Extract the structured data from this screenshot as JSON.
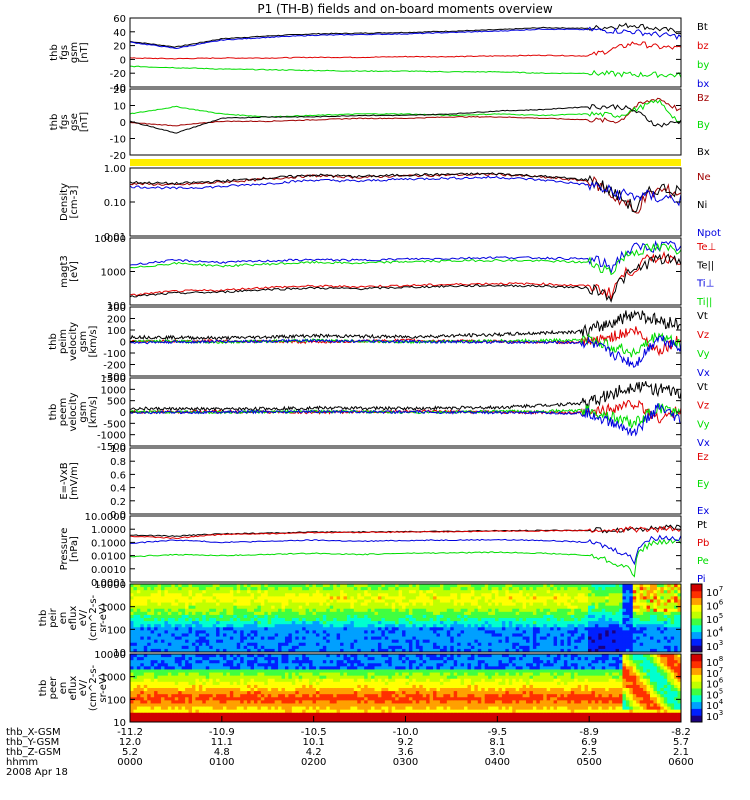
{
  "title": "P1 (TH-B) fields and on-board moments overview",
  "colors": {
    "black": "#000000",
    "red": "#e00000",
    "green": "#00dd00",
    "blue": "#0000e0",
    "yellow": "#ffee00",
    "darkred": "#a00000"
  },
  "chart_data": [
    {
      "type": "line",
      "panel": "fgs_gsm",
      "ylabel": [
        "thb",
        "fgs",
        "gsm",
        "[nT]"
      ],
      "ylim": [
        -40,
        60
      ],
      "yticks": [
        "60",
        "40",
        "20",
        "0",
        "-20",
        "-40"
      ],
      "grid": false,
      "legend": [
        {
          "name": "Bt",
          "color": "#000000"
        },
        {
          "name": "bz",
          "color": "#e00000"
        },
        {
          "name": "by",
          "color": "#00dd00"
        },
        {
          "name": "bx",
          "color": "#0000e0"
        }
      ],
      "x": [
        0,
        30,
        60,
        90,
        120,
        150,
        180,
        210,
        240,
        270,
        300,
        330,
        345,
        360
      ],
      "series": [
        {
          "name": "Bt",
          "values": [
            26,
            18,
            30,
            34,
            37,
            38,
            39,
            41,
            43,
            46,
            45,
            50,
            44,
            40
          ]
        },
        {
          "name": "bz",
          "values": [
            2,
            1,
            2,
            2,
            3,
            3,
            4,
            4,
            5,
            6,
            5,
            24,
            18,
            16
          ]
        },
        {
          "name": "by",
          "values": [
            -10,
            -12,
            -14,
            -15,
            -16,
            -17,
            -17,
            -18,
            -18,
            -20,
            -20,
            -22,
            -22,
            -23
          ]
        },
        {
          "name": "bx",
          "values": [
            25,
            16,
            28,
            32,
            35,
            36,
            37,
            39,
            41,
            44,
            43,
            40,
            36,
            33
          ]
        }
      ]
    },
    {
      "type": "line",
      "panel": "fgs_gse",
      "ylabel": [
        "thb",
        "fgs",
        "gse",
        "[nT]"
      ],
      "ylim": [
        -25,
        20
      ],
      "yticks": [
        "20",
        "10",
        "0",
        "-10",
        "-20"
      ],
      "legend": [
        {
          "name": "Bz",
          "color": "#a00000"
        },
        {
          "name": "By",
          "color": "#00dd00"
        },
        {
          "name": "Bx",
          "color": "#000000"
        }
      ],
      "x": [
        0,
        30,
        60,
        90,
        120,
        150,
        180,
        210,
        240,
        270,
        300,
        320,
        330,
        345,
        360
      ],
      "series": [
        {
          "name": "Bz",
          "values": [
            -3,
            -5,
            -2,
            -2,
            -1,
            0,
            0,
            1,
            1,
            0,
            -1,
            -2,
            8,
            14,
            5
          ]
        },
        {
          "name": "By",
          "values": [
            3,
            8,
            3,
            1,
            2,
            3,
            3,
            2,
            3,
            2,
            3,
            2,
            6,
            12,
            -4
          ]
        },
        {
          "name": "Bx",
          "values": [
            -2,
            -10,
            0,
            1,
            1,
            2,
            2,
            3,
            5,
            6,
            8,
            8,
            5,
            -5,
            -2
          ]
        }
      ]
    },
    {
      "type": "line",
      "panel": "density",
      "ylabel": [
        "Density",
        "[cm-3]"
      ],
      "scale": "log",
      "ylim": [
        0.01,
        1.6
      ],
      "yticks": [
        "1.00",
        "0.10",
        "0.01"
      ],
      "legend": [
        {
          "name": "Ne",
          "color": "#a00000"
        },
        {
          "name": "Ni",
          "color": "#000000"
        },
        {
          "name": "Npot",
          "color": "#0000e0"
        }
      ],
      "x": [
        0,
        30,
        60,
        90,
        120,
        150,
        180,
        210,
        240,
        270,
        300,
        315,
        330,
        345,
        360
      ],
      "series": [
        {
          "name": "Ne",
          "values": [
            0.5,
            0.45,
            0.55,
            0.7,
            0.9,
            0.8,
            0.9,
            0.95,
            1.0,
            0.8,
            0.6,
            0.2,
            0.05,
            0.3,
            0.25
          ]
        },
        {
          "name": "Ni",
          "values": [
            0.55,
            0.5,
            0.6,
            0.75,
            0.95,
            0.85,
            0.95,
            1.0,
            1.05,
            0.85,
            0.65,
            0.25,
            0.06,
            0.35,
            0.3
          ]
        },
        {
          "name": "Npot",
          "values": [
            0.4,
            0.35,
            0.4,
            0.5,
            0.65,
            0.6,
            0.7,
            0.75,
            0.8,
            0.65,
            0.45,
            0.25,
            0.2,
            0.18,
            0.15
          ]
        }
      ]
    },
    {
      "type": "line",
      "panel": "temperature",
      "ylabel": [
        "magt3",
        "[eV]"
      ],
      "scale": "log",
      "ylim": [
        40,
        12000
      ],
      "yticks": [
        "10000",
        "1000",
        "100"
      ],
      "legend": [
        {
          "name": "Te⊥",
          "color": "#e00000"
        },
        {
          "name": "Te||",
          "color": "#000000"
        },
        {
          "name": "Ti⊥",
          "color": "#0000e0"
        },
        {
          "name": "Ti||",
          "color": "#00dd00"
        }
      ],
      "x": [
        0,
        30,
        60,
        90,
        120,
        150,
        180,
        210,
        240,
        270,
        300,
        315,
        330,
        345,
        360
      ],
      "series": [
        {
          "name": "Te⊥",
          "values": [
            90,
            130,
            140,
            180,
            200,
            190,
            210,
            230,
            250,
            240,
            200,
            100,
            900,
            2500,
            2000
          ]
        },
        {
          "name": "Te||",
          "values": [
            80,
            110,
            120,
            150,
            170,
            160,
            180,
            200,
            210,
            200,
            170,
            80,
            700,
            2000,
            1600
          ]
        },
        {
          "name": "Ti⊥",
          "values": [
            1200,
            1800,
            1500,
            1700,
            1900,
            1800,
            2000,
            2100,
            2300,
            2200,
            2000,
            900,
            5000,
            6000,
            5500
          ]
        },
        {
          "name": "Ti||",
          "values": [
            900,
            1400,
            1100,
            1300,
            1500,
            1400,
            1600,
            1700,
            1800,
            1700,
            1500,
            600,
            4000,
            5000,
            4500
          ]
        }
      ]
    },
    {
      "type": "line",
      "panel": "ion_velocity",
      "ylabel": [
        "thb",
        "peim",
        "velocity",
        "gsm",
        "[km/s]"
      ],
      "ylim": [
        -300,
        300
      ],
      "yticks": [
        "300",
        "200",
        "100",
        "0",
        "-100",
        "-200",
        "-300"
      ],
      "legend": [
        {
          "name": "Vt",
          "color": "#000000"
        },
        {
          "name": "Vz",
          "color": "#e00000"
        },
        {
          "name": "Vy",
          "color": "#00dd00"
        },
        {
          "name": "Vx",
          "color": "#0000e0"
        }
      ],
      "x": [
        0,
        60,
        120,
        180,
        240,
        300,
        330,
        345,
        360
      ],
      "series": [
        {
          "name": "Vt",
          "values": [
            40,
            30,
            50,
            40,
            60,
            90,
            250,
            180,
            150
          ]
        },
        {
          "name": "Vz",
          "values": [
            0,
            5,
            -5,
            10,
            0,
            -10,
            100,
            -80,
            20
          ]
        },
        {
          "name": "Vy",
          "values": [
            5,
            -5,
            10,
            -5,
            5,
            15,
            -100,
            60,
            -30
          ]
        },
        {
          "name": "Vx",
          "values": [
            -10,
            0,
            5,
            0,
            -5,
            -10,
            -200,
            40,
            -50
          ]
        }
      ]
    },
    {
      "type": "line",
      "panel": "electron_velocity",
      "ylabel": [
        "thb",
        "peem",
        "velocity",
        "gsm",
        "[km/s]"
      ],
      "ylim": [
        -1500,
        1500
      ],
      "yticks": [
        "1500",
        "1000",
        "500",
        "0",
        "-500",
        "-1000",
        "-1500"
      ],
      "legend": [
        {
          "name": "Vt",
          "color": "#000000"
        },
        {
          "name": "Vz",
          "color": "#e00000"
        },
        {
          "name": "Vy",
          "color": "#00dd00"
        },
        {
          "name": "Vx",
          "color": "#0000e0"
        }
      ],
      "x": [
        0,
        60,
        120,
        180,
        240,
        300,
        330,
        345,
        360
      ],
      "series": [
        {
          "name": "Vt",
          "values": [
            150,
            120,
            180,
            160,
            200,
            400,
            1200,
            1000,
            800
          ]
        },
        {
          "name": "Vz",
          "values": [
            0,
            20,
            -20,
            30,
            0,
            -50,
            400,
            -300,
            100
          ]
        },
        {
          "name": "Vy",
          "values": [
            20,
            -20,
            30,
            -20,
            20,
            60,
            -500,
            200,
            -100
          ]
        },
        {
          "name": "Vx",
          "values": [
            -30,
            0,
            20,
            0,
            -20,
            -60,
            -900,
            200,
            -400
          ]
        }
      ]
    },
    {
      "type": "line",
      "panel": "efield",
      "ylabel": [
        "E=-VxB",
        "[mV/m]"
      ],
      "ylim": [
        0,
        1.0
      ],
      "yticks": [
        "1.0",
        "0.8",
        "0.6",
        "0.4",
        "0.2",
        "0.0"
      ],
      "legend": [
        {
          "name": "Ez",
          "color": "#e00000"
        },
        {
          "name": "Ey",
          "color": "#00dd00"
        },
        {
          "name": "Ex",
          "color": "#0000e0"
        }
      ],
      "series": []
    },
    {
      "type": "line",
      "panel": "pressure",
      "ylabel": [
        "Pressure",
        "[nPa]"
      ],
      "scale": "log",
      "ylim": [
        0.0001,
        10
      ],
      "yticks": [
        "10.0000",
        "1.0000",
        "0.1000",
        "0.0100",
        "0.0010",
        "0.0001"
      ],
      "legend": [
        {
          "name": "Pt",
          "color": "#000000"
        },
        {
          "name": "Pb",
          "color": "#e00000"
        },
        {
          "name": "Pe",
          "color": "#00dd00"
        },
        {
          "name": "Pi",
          "color": "#0000e0"
        }
      ],
      "x": [
        0,
        30,
        60,
        90,
        120,
        150,
        180,
        210,
        240,
        270,
        300,
        315,
        330,
        345,
        360
      ],
      "series": [
        {
          "name": "Pt",
          "values": [
            0.35,
            0.3,
            0.45,
            0.5,
            0.6,
            0.62,
            0.65,
            0.7,
            0.75,
            0.8,
            0.82,
            0.85,
            1.1,
            1.2,
            1.3
          ]
        },
        {
          "name": "Pb",
          "values": [
            0.3,
            0.2,
            0.4,
            0.45,
            0.55,
            0.58,
            0.6,
            0.65,
            0.7,
            0.75,
            0.8,
            0.82,
            1.0,
            1.0,
            0.9
          ]
        },
        {
          "name": "Pe",
          "values": [
            0.008,
            0.012,
            0.01,
            0.012,
            0.015,
            0.012,
            0.015,
            0.016,
            0.018,
            0.015,
            0.01,
            0.003,
            0.0002,
            0.1,
            0.12
          ]
        },
        {
          "name": "Pi",
          "values": [
            0.08,
            0.15,
            0.1,
            0.12,
            0.15,
            0.12,
            0.14,
            0.15,
            0.16,
            0.14,
            0.1,
            0.03,
            0.002,
            0.25,
            0.2
          ]
        }
      ]
    },
    {
      "type": "heatmap",
      "panel": "peir_spectrogram",
      "ylabel": [
        "thb",
        "peir",
        "en",
        "eflux",
        "eV/",
        "(cm^2-s-",
        "sr-eV)"
      ],
      "scale": "log",
      "ylim": [
        5,
        30000
      ],
      "yticks": [
        "10000",
        "1000",
        "100",
        "10"
      ],
      "colorbar": {
        "ticks": [
          "10^7",
          "10^6",
          "10^5",
          "10^4",
          "10^3"
        ]
      }
    },
    {
      "type": "heatmap",
      "panel": "peer_spectrogram",
      "ylabel": [
        "thb",
        "peer",
        "en",
        "eflux",
        "eV/",
        "(cm^2-s-",
        "sr-eV)"
      ],
      "scale": "log",
      "ylim": [
        5,
        30000
      ],
      "yticks": [
        "10000",
        "1000",
        "100",
        "10"
      ],
      "colorbar": {
        "ticks": [
          "10^8",
          "10^7",
          "10^6",
          "10^5",
          "10^4",
          "10^3"
        ]
      }
    }
  ],
  "x_axis": {
    "row_labels": [
      "thb_X-GSM",
      "thb_Y-GSM",
      "thb_Z-GSM",
      "hhmm",
      "2008 Apr 18"
    ],
    "columns": [
      {
        "x": "-11.2",
        "y": "12.0",
        "z": "5.2",
        "t": "0000"
      },
      {
        "x": "-10.9",
        "y": "11.1",
        "z": "4.8",
        "t": "0100"
      },
      {
        "x": "-10.5",
        "y": "10.1",
        "z": "4.2",
        "t": "0200"
      },
      {
        "x": "-10.0",
        "y": "9.2",
        "z": "3.6",
        "t": "0300"
      },
      {
        "x": "-9.5",
        "y": "8.1",
        "z": "3.0",
        "t": "0400"
      },
      {
        "x": "-8.9",
        "y": "6.9",
        "z": "2.5",
        "t": "0500"
      },
      {
        "x": "-8.2",
        "y": "5.7",
        "z": "2.1",
        "t": "0600"
      }
    ]
  }
}
